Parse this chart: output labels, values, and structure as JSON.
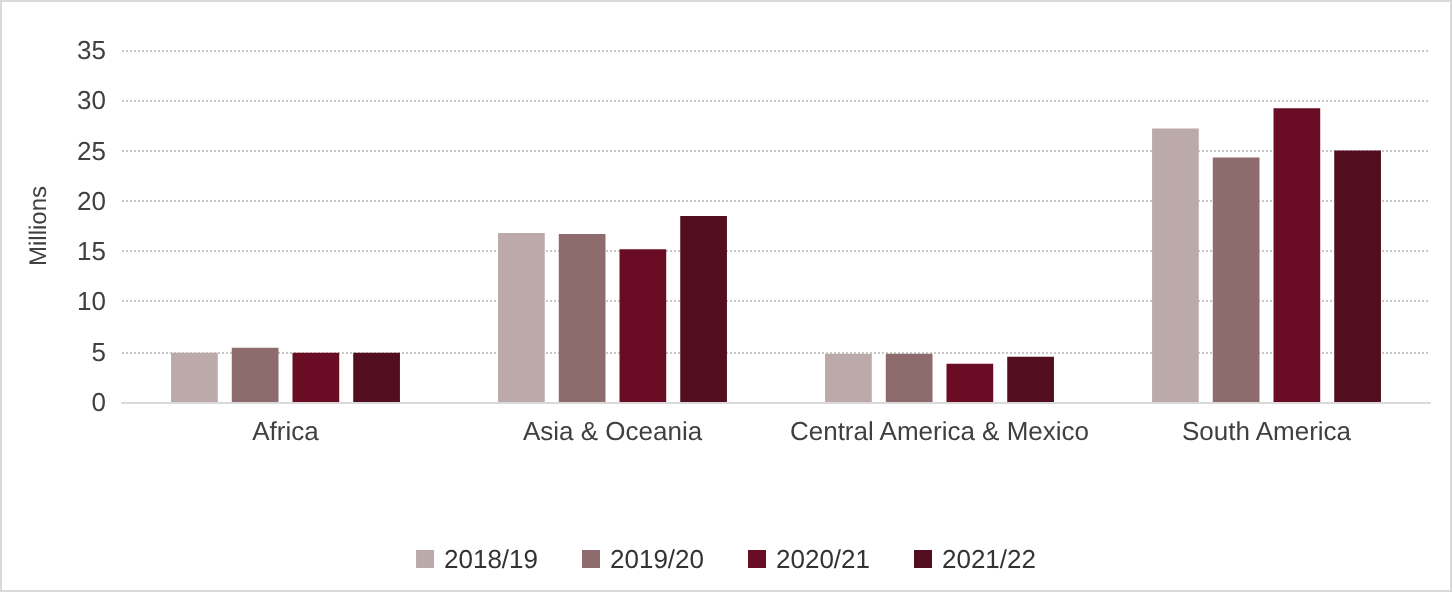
{
  "chart_data": {
    "type": "bar",
    "ylabel": "Millions",
    "categories": [
      "Africa",
      "Asia & Oceania",
      "Central America & Mexico",
      "South America"
    ],
    "series": [
      {
        "name": "2018/19",
        "color": "#bbaaa9",
        "values": [
          4.9,
          16.8,
          4.8,
          27.2
        ]
      },
      {
        "name": "2019/20",
        "color": "#8e6b6d",
        "values": [
          5.4,
          16.7,
          4.8,
          24.3
        ]
      },
      {
        "name": "2020/21",
        "color": "#6a0c24",
        "values": [
          4.9,
          15.2,
          3.8,
          29.2
        ]
      },
      {
        "name": "2021/22",
        "color": "#520d1e",
        "values": [
          4.9,
          18.5,
          4.5,
          25.0
        ]
      }
    ],
    "ylim": [
      0,
      35
    ],
    "yticks": [
      0,
      5,
      10,
      15,
      20,
      25,
      30,
      35
    ],
    "grid": "y",
    "legend": "bottom"
  }
}
